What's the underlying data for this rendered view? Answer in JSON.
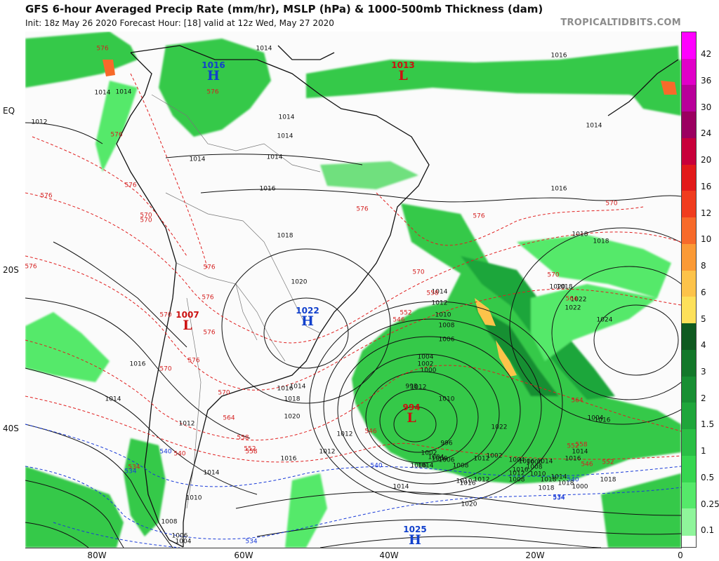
{
  "header": {
    "title": "GFS 6-hour Averaged Precip Rate (mm/hr), MSLP (hPa) & 1000-500mb Thickness (dam)",
    "subtitle": "Init: 18z May 26 2020   Forecast Hour: [18]   valid at 12z Wed, May 27 2020",
    "credit": "TROPICALTIDBITS.COM"
  },
  "axes": {
    "longitudes": [
      "80W",
      "60W",
      "40W",
      "20W",
      "0"
    ],
    "latitudes": [
      "EQ",
      "20S",
      "40S"
    ]
  },
  "colorbar": {
    "labels": [
      "42",
      "36",
      "30",
      "24",
      "20",
      "16",
      "12",
      "10",
      "8",
      "6",
      "5",
      "4",
      "3",
      "2",
      "1.5",
      "1",
      "0.5",
      "0.25",
      "0.1"
    ],
    "colors": [
      "#ff00ff",
      "#e000c8",
      "#b8009a",
      "#9b0060",
      "#c8003a",
      "#e21a1a",
      "#f03c1e",
      "#f76a2a",
      "#fb9a36",
      "#fdc34a",
      "#fde05a",
      "#0f5a20",
      "#13782a",
      "#188f33",
      "#1fa63b",
      "#2abf45",
      "#36d650",
      "#55e96a",
      "#8ff59b"
    ]
  },
  "systems": [
    {
      "kind": "low",
      "value": "1013",
      "symbol": "L"
    },
    {
      "kind": "high",
      "value": "1016",
      "symbol": "H"
    },
    {
      "kind": "low",
      "value": "1007",
      "symbol": "L"
    },
    {
      "kind": "high",
      "value": "1022",
      "symbol": "H"
    },
    {
      "kind": "low",
      "value": "994",
      "symbol": "L"
    },
    {
      "kind": "high",
      "value": "1025",
      "symbol": "H"
    }
  ],
  "isobar_labels": [
    "1014",
    "1014",
    "1012",
    "1014",
    "1014",
    "1014",
    "1014",
    "1014",
    "1016",
    "1016",
    "1016",
    "1014",
    "1018",
    "1018",
    "1018",
    "1020",
    "1016",
    "1014",
    "1012",
    "1014",
    "1012",
    "1016",
    "1020",
    "1018",
    "1016",
    "1014",
    "1012",
    "1010",
    "1016",
    "1014",
    "1012",
    "1010",
    "1008",
    "1006",
    "1004",
    "1014",
    "1012",
    "1010",
    "1008",
    "1006",
    "1004",
    "1002",
    "1000",
    "998",
    "996",
    "1000",
    "1002",
    "1004",
    "1006",
    "1008",
    "1010",
    "1012",
    "1014",
    "1016",
    "1018",
    "1022",
    "1014",
    "1018",
    "1016",
    "1012",
    "1008",
    "1006",
    "1004",
    "1020",
    "1022",
    "1024",
    "1018",
    "1016",
    "1014",
    "1012",
    "1010",
    "1008",
    "1006",
    "1004",
    "1002",
    "1000",
    "1018",
    "1020",
    "1022",
    "1016",
    "1014",
    "1018"
  ],
  "thickness_labels": [
    "576",
    "576",
    "576",
    "576",
    "576",
    "570",
    "576",
    "576",
    "570",
    "576",
    "570",
    "576",
    "576",
    "570",
    "576",
    "570",
    "564",
    "558",
    "552",
    "546",
    "540",
    "534",
    "570",
    "564",
    "558",
    "552",
    "546",
    "552",
    "576",
    "570",
    "570",
    "564",
    "558",
    "552",
    "546",
    "558"
  ],
  "thickness_labels_blue": [
    "540",
    "534",
    "540",
    "534",
    "534",
    "540",
    "534"
  ]
}
